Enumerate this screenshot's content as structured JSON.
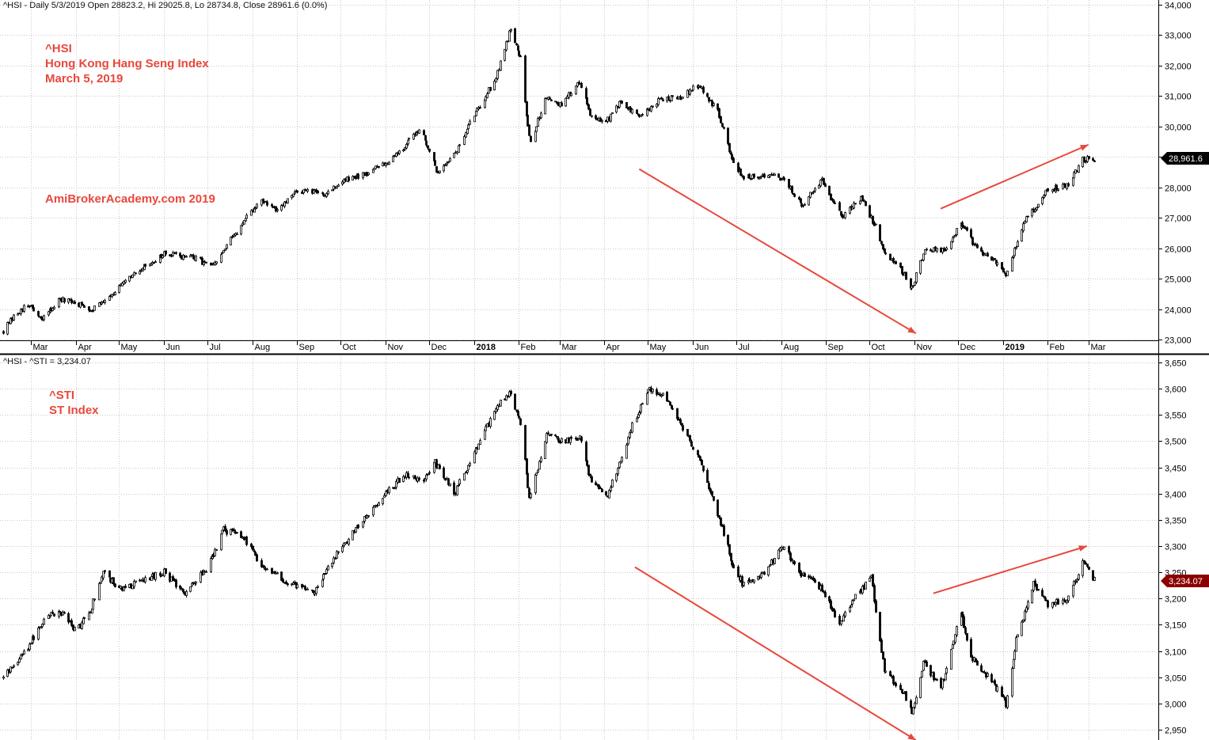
{
  "panes": [
    {
      "header": "^HSI - Daily 5/3/2019 Open 28823.2, Hi 29025.8, Lo 28734.8, Close 28961.6 (0.0%)",
      "annotation_lines": [
        "^HSI",
        "Hong Kong Hang Seng Index",
        "March 5, 2019"
      ],
      "watermark": "AmiBrokerAcademy.com  2019",
      "last_value_label": "28,961.6",
      "last_value_color": "#000000"
    },
    {
      "header": "^HSI - ^STI = 3,234.07",
      "annotation_lines": [
        "^STI",
        "ST Index"
      ],
      "last_value_label": "3,234.07",
      "last_value_color": "#8b0000"
    }
  ],
  "colors": {
    "annotation": "#e8483c",
    "candle": "#000000",
    "grid": "#c8c8c8",
    "axis": "#000000"
  },
  "chart_data": [
    {
      "type": "candlestick",
      "title": "^HSI",
      "ylim": [
        23000,
        34000
      ],
      "yticks": [
        23000,
        24000,
        25000,
        26000,
        27000,
        28000,
        29000,
        30000,
        31000,
        32000,
        33000,
        34000
      ],
      "ytick_labels": [
        "23,000",
        "24,000",
        "25,000",
        "26,000",
        "27,000",
        "28,000",
        "29,000",
        "30,000",
        "31,000",
        "32,000",
        "33,000",
        "34,000"
      ],
      "x_start": "2017-02-10",
      "x_end": "2019-03-05",
      "x_ticks": [
        {
          "date": "2017-03-01",
          "label": "Mar",
          "bold": false
        },
        {
          "date": "2017-04-01",
          "label": "Apr",
          "bold": false
        },
        {
          "date": "2017-05-01",
          "label": "May",
          "bold": false
        },
        {
          "date": "2017-06-01",
          "label": "Jun",
          "bold": false
        },
        {
          "date": "2017-07-01",
          "label": "Jul",
          "bold": false
        },
        {
          "date": "2017-08-01",
          "label": "Aug",
          "bold": false
        },
        {
          "date": "2017-09-01",
          "label": "Sep",
          "bold": false
        },
        {
          "date": "2017-10-01",
          "label": "Oct",
          "bold": false
        },
        {
          "date": "2017-11-01",
          "label": "Nov",
          "bold": false
        },
        {
          "date": "2017-12-01",
          "label": "Dec",
          "bold": false
        },
        {
          "date": "2018-01-01",
          "label": "2018",
          "bold": true
        },
        {
          "date": "2018-02-01",
          "label": "Feb",
          "bold": false
        },
        {
          "date": "2018-03-01",
          "label": "Mar",
          "bold": false
        },
        {
          "date": "2018-04-01",
          "label": "Apr",
          "bold": false
        },
        {
          "date": "2018-05-01",
          "label": "May",
          "bold": false
        },
        {
          "date": "2018-06-01",
          "label": "Jun",
          "bold": false
        },
        {
          "date": "2018-07-01",
          "label": "Jul",
          "bold": false
        },
        {
          "date": "2018-08-01",
          "label": "Aug",
          "bold": false
        },
        {
          "date": "2018-09-01",
          "label": "Sep",
          "bold": false
        },
        {
          "date": "2018-10-01",
          "label": "Oct",
          "bold": false
        },
        {
          "date": "2018-11-01",
          "label": "Nov",
          "bold": false
        },
        {
          "date": "2018-12-01",
          "label": "Dec",
          "bold": false
        },
        {
          "date": "2019-01-01",
          "label": "2019",
          "bold": true
        },
        {
          "date": "2019-02-01",
          "label": "Feb",
          "bold": false
        },
        {
          "date": "2019-03-01",
          "label": "Mar",
          "bold": false
        }
      ],
      "price_path": [
        [
          "2017-02-10",
          23300
        ],
        [
          "2017-02-22",
          24000
        ],
        [
          "2017-03-01",
          24100
        ],
        [
          "2017-03-08",
          23600
        ],
        [
          "2017-03-20",
          24300
        ],
        [
          "2017-04-01",
          24200
        ],
        [
          "2017-04-12",
          24000
        ],
        [
          "2017-05-01",
          24700
        ],
        [
          "2017-05-15",
          25300
        ],
        [
          "2017-06-01",
          25800
        ],
        [
          "2017-06-20",
          25700
        ],
        [
          "2017-07-05",
          25400
        ],
        [
          "2017-07-20",
          26500
        ],
        [
          "2017-08-07",
          27600
        ],
        [
          "2017-08-18",
          27200
        ],
        [
          "2017-09-01",
          27900
        ],
        [
          "2017-09-20",
          27800
        ],
        [
          "2017-10-02",
          28200
        ],
        [
          "2017-10-20",
          28500
        ],
        [
          "2017-11-01",
          28800
        ],
        [
          "2017-11-15",
          29400
        ],
        [
          "2017-11-25",
          30000
        ],
        [
          "2017-12-06",
          28500
        ],
        [
          "2017-12-20",
          29200
        ],
        [
          "2018-01-02",
          30500
        ],
        [
          "2018-01-15",
          31500
        ],
        [
          "2018-01-26",
          33200
        ],
        [
          "2018-02-02",
          32300
        ],
        [
          "2018-02-06",
          30300
        ],
        [
          "2018-02-09",
          29500
        ],
        [
          "2018-02-20",
          31000
        ],
        [
          "2018-03-01",
          30700
        ],
        [
          "2018-03-15",
          31500
        ],
        [
          "2018-03-23",
          30300
        ],
        [
          "2018-04-01",
          30100
        ],
        [
          "2018-04-12",
          30800
        ],
        [
          "2018-04-25",
          30300
        ],
        [
          "2018-05-10",
          30900
        ],
        [
          "2018-05-25",
          31000
        ],
        [
          "2018-06-05",
          31400
        ],
        [
          "2018-06-18",
          30500
        ],
        [
          "2018-06-28",
          28900
        ],
        [
          "2018-07-06",
          28300
        ],
        [
          "2018-07-20",
          28400
        ],
        [
          "2018-08-02",
          28300
        ],
        [
          "2018-08-15",
          27400
        ],
        [
          "2018-08-29",
          28200
        ],
        [
          "2018-09-12",
          27000
        ],
        [
          "2018-09-25",
          27700
        ],
        [
          "2018-10-05",
          26700
        ],
        [
          "2018-10-11",
          25800
        ],
        [
          "2018-10-20",
          25500
        ],
        [
          "2018-10-30",
          24700
        ],
        [
          "2018-11-08",
          26000
        ],
        [
          "2018-11-21",
          25900
        ],
        [
          "2018-12-03",
          26800
        ],
        [
          "2018-12-14",
          26000
        ],
        [
          "2018-12-27",
          25500
        ],
        [
          "2019-01-03",
          25100
        ],
        [
          "2019-01-15",
          26800
        ],
        [
          "2019-01-31",
          27900
        ],
        [
          "2019-02-15",
          28100
        ],
        [
          "2019-02-25",
          28900
        ],
        [
          "2019-03-05",
          28961.6
        ]
      ],
      "trendlines": [
        {
          "from": [
            "2018-04-25",
            28600
          ],
          "to": [
            "2018-11-02",
            23200
          ]
        },
        {
          "from": [
            "2018-11-19",
            27300
          ],
          "to": [
            "2019-03-01",
            29400
          ]
        }
      ]
    },
    {
      "type": "candlestick",
      "title": "^STI",
      "ylim": [
        2930,
        3680
      ],
      "yticks": [
        2950,
        3000,
        3050,
        3100,
        3150,
        3200,
        3250,
        3300,
        3350,
        3400,
        3450,
        3500,
        3550,
        3600,
        3650
      ],
      "ytick_labels": [
        "2,950",
        "3,000",
        "3,050",
        "3,100",
        "3,150",
        "3,200",
        "3,250",
        "3,300",
        "3,350",
        "3,400",
        "3,450",
        "3,500",
        "3,550",
        "3,600",
        "3,650"
      ],
      "x_start": "2017-02-10",
      "x_end": "2019-03-05",
      "price_path": [
        [
          "2017-02-10",
          3050
        ],
        [
          "2017-02-25",
          3100
        ],
        [
          "2017-03-08",
          3150
        ],
        [
          "2017-03-20",
          3180
        ],
        [
          "2017-04-01",
          3140
        ],
        [
          "2017-04-10",
          3170
        ],
        [
          "2017-04-20",
          3250
        ],
        [
          "2017-05-01",
          3220
        ],
        [
          "2017-05-15",
          3230
        ],
        [
          "2017-06-01",
          3250
        ],
        [
          "2017-06-15",
          3210
        ],
        [
          "2017-07-01",
          3260
        ],
        [
          "2017-07-12",
          3330
        ],
        [
          "2017-07-25",
          3320
        ],
        [
          "2017-08-08",
          3260
        ],
        [
          "2017-08-25",
          3230
        ],
        [
          "2017-09-12",
          3210
        ],
        [
          "2017-09-22",
          3260
        ],
        [
          "2017-10-05",
          3310
        ],
        [
          "2017-10-20",
          3360
        ],
        [
          "2017-11-01",
          3400
        ],
        [
          "2017-11-15",
          3440
        ],
        [
          "2017-11-25",
          3420
        ],
        [
          "2017-12-05",
          3460
        ],
        [
          "2017-12-18",
          3400
        ],
        [
          "2018-01-05",
          3500
        ],
        [
          "2018-01-18",
          3570
        ],
        [
          "2018-01-26",
          3590
        ],
        [
          "2018-02-02",
          3530
        ],
        [
          "2018-02-08",
          3390
        ],
        [
          "2018-02-20",
          3510
        ],
        [
          "2018-03-05",
          3500
        ],
        [
          "2018-03-15",
          3510
        ],
        [
          "2018-03-23",
          3420
        ],
        [
          "2018-04-03",
          3400
        ],
        [
          "2018-04-12",
          3460
        ],
        [
          "2018-04-20",
          3530
        ],
        [
          "2018-05-02",
          3600
        ],
        [
          "2018-05-14",
          3580
        ],
        [
          "2018-05-28",
          3510
        ],
        [
          "2018-06-06",
          3460
        ],
        [
          "2018-06-18",
          3360
        ],
        [
          "2018-06-28",
          3270
        ],
        [
          "2018-07-05",
          3230
        ],
        [
          "2018-07-20",
          3250
        ],
        [
          "2018-08-02",
          3300
        ],
        [
          "2018-08-14",
          3250
        ],
        [
          "2018-08-29",
          3220
        ],
        [
          "2018-09-10",
          3150
        ],
        [
          "2018-09-20",
          3200
        ],
        [
          "2018-10-02",
          3240
        ],
        [
          "2018-10-11",
          3060
        ],
        [
          "2018-10-25",
          3020
        ],
        [
          "2018-10-30",
          2980
        ],
        [
          "2018-11-07",
          3080
        ],
        [
          "2018-11-19",
          3030
        ],
        [
          "2018-12-03",
          3170
        ],
        [
          "2018-12-10",
          3090
        ],
        [
          "2018-12-27",
          3030
        ],
        [
          "2019-01-03",
          3000
        ],
        [
          "2019-01-10",
          3120
        ],
        [
          "2019-01-22",
          3230
        ],
        [
          "2019-02-01",
          3190
        ],
        [
          "2019-02-15",
          3200
        ],
        [
          "2019-02-25",
          3270
        ],
        [
          "2019-03-05",
          3234.07
        ]
      ],
      "trendlines": [
        {
          "from": [
            "2018-04-22",
            3260
          ],
          "to": [
            "2018-11-02",
            2930
          ]
        },
        {
          "from": [
            "2018-11-14",
            3210
          ],
          "to": [
            "2019-02-28",
            3300
          ]
        }
      ]
    }
  ]
}
